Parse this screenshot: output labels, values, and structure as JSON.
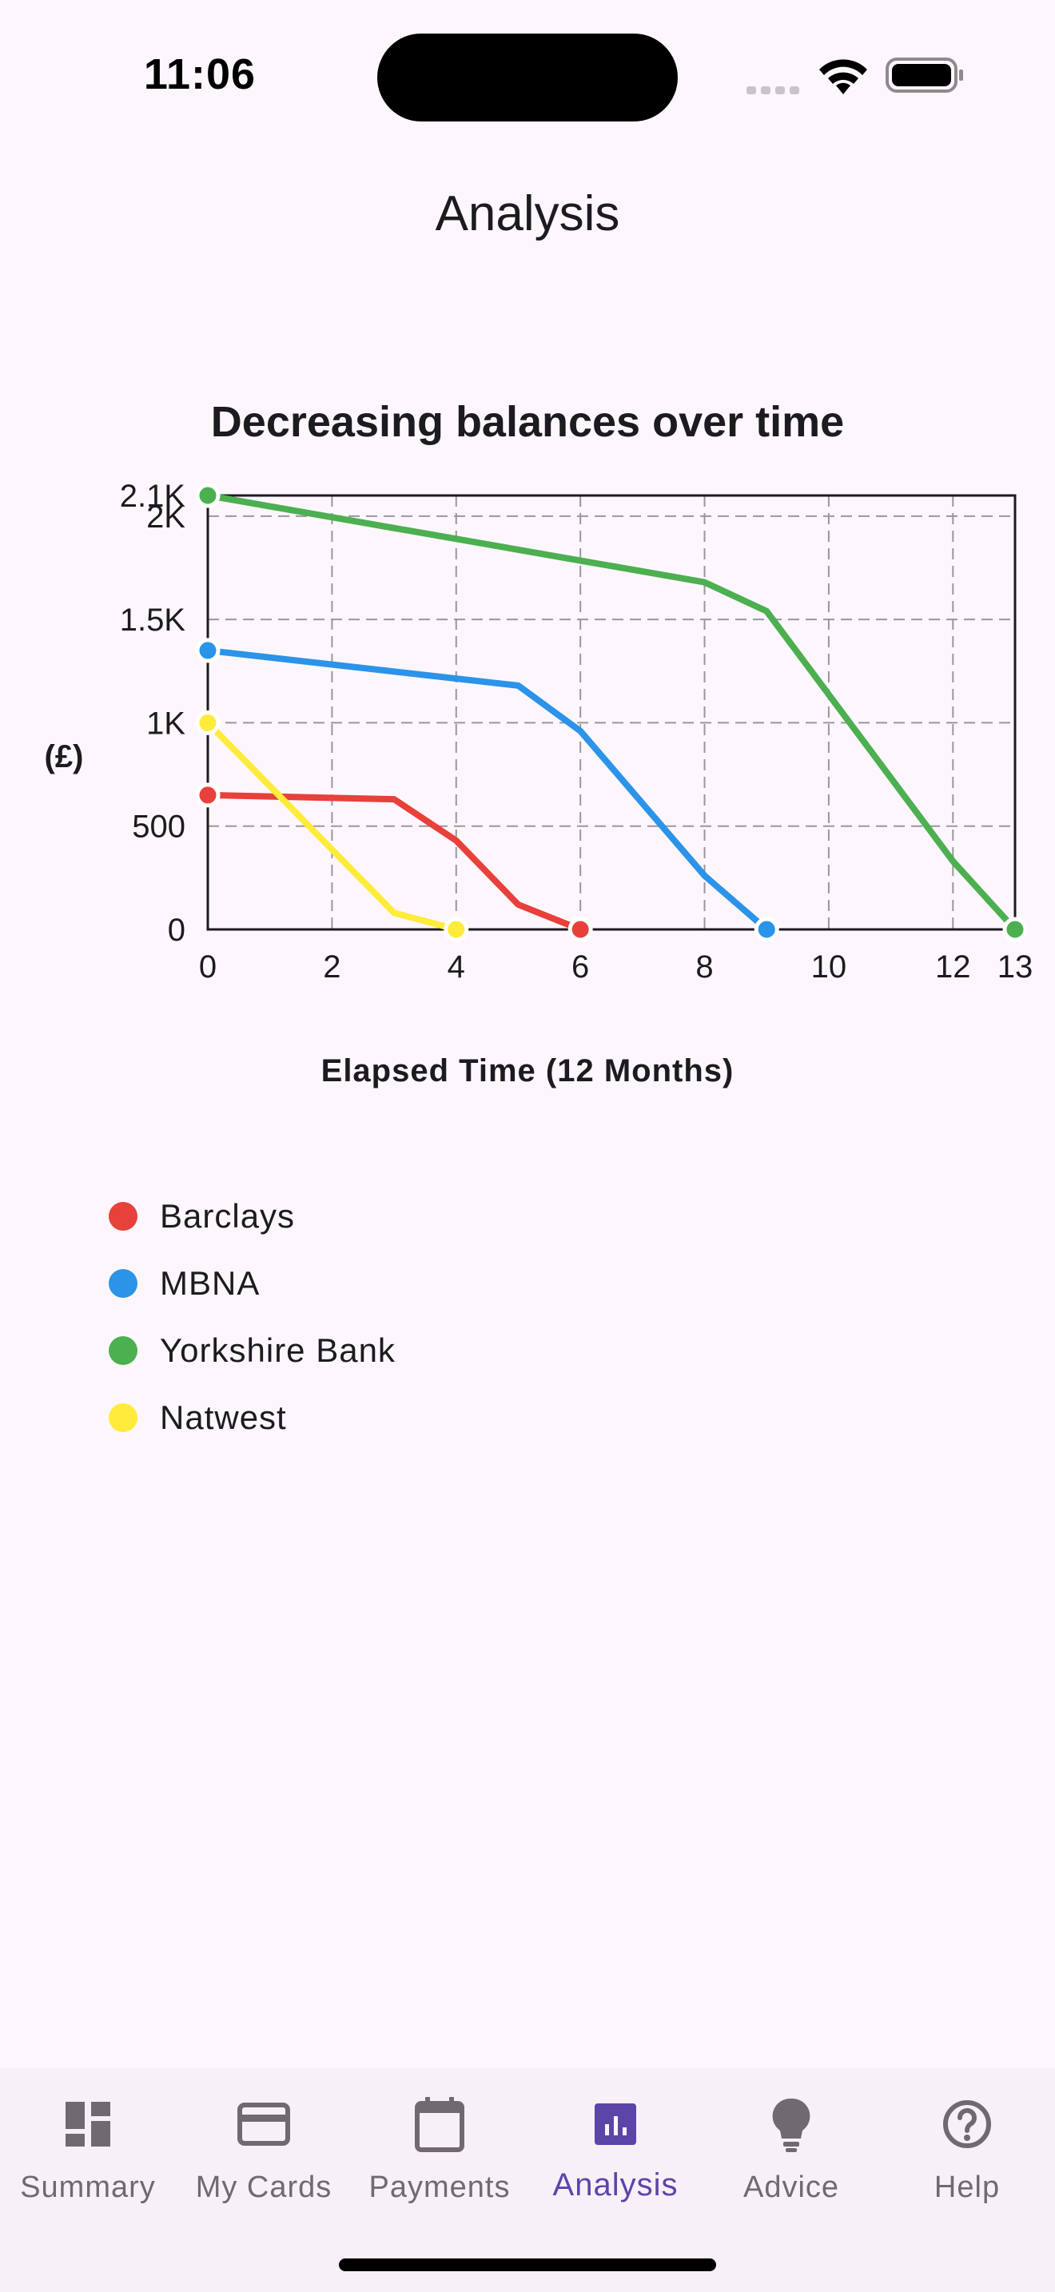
{
  "status_bar": {
    "time": "11:06"
  },
  "header": {
    "title": "Analysis"
  },
  "chart_data": {
    "type": "line",
    "title": "Decreasing balances over time",
    "xlabel": "Elapsed Time (12 Months)",
    "ylabel": "(£)",
    "xlim": [
      0,
      13
    ],
    "ylim": [
      0,
      2100
    ],
    "x_ticks": [
      "0",
      "2",
      "4",
      "6",
      "8",
      "10",
      "12",
      "13"
    ],
    "y_ticks": [
      "0",
      "500",
      "1K",
      "1.5K",
      "2K",
      "2.1K"
    ],
    "grid": true,
    "legend_position": "bottom-left",
    "series": [
      {
        "name": "Barclays",
        "color": "#e8403a",
        "points": [
          [
            0,
            650
          ],
          [
            3,
            630
          ],
          [
            4,
            430
          ],
          [
            5,
            120
          ],
          [
            6,
            0
          ]
        ]
      },
      {
        "name": "MBNA",
        "color": "#2b93e8",
        "points": [
          [
            0,
            1350
          ],
          [
            5,
            1180
          ],
          [
            6,
            960
          ],
          [
            8,
            260
          ],
          [
            9,
            0
          ]
        ]
      },
      {
        "name": "Yorkshire Bank",
        "color": "#4caf50",
        "points": [
          [
            0,
            2100
          ],
          [
            8,
            1680
          ],
          [
            9,
            1540
          ],
          [
            12,
            330
          ],
          [
            13,
            0
          ]
        ]
      },
      {
        "name": "Natwest",
        "color": "#ffeb3b",
        "points": [
          [
            0,
            1000
          ],
          [
            3,
            80
          ],
          [
            4,
            0
          ]
        ]
      }
    ]
  },
  "bottom_nav": {
    "items": [
      {
        "label": "Summary",
        "icon": "dashboard-icon",
        "active": false
      },
      {
        "label": "My Cards",
        "icon": "credit-card-icon",
        "active": false
      },
      {
        "label": "Payments",
        "icon": "calendar-icon",
        "active": false
      },
      {
        "label": "Analysis",
        "icon": "analytics-icon",
        "active": true
      },
      {
        "label": "Advice",
        "icon": "lightbulb-icon",
        "active": false
      },
      {
        "label": "Help",
        "icon": "help-icon",
        "active": false
      }
    ],
    "inactive_color": "#6f6a72",
    "active_color": "#5b45a8"
  }
}
